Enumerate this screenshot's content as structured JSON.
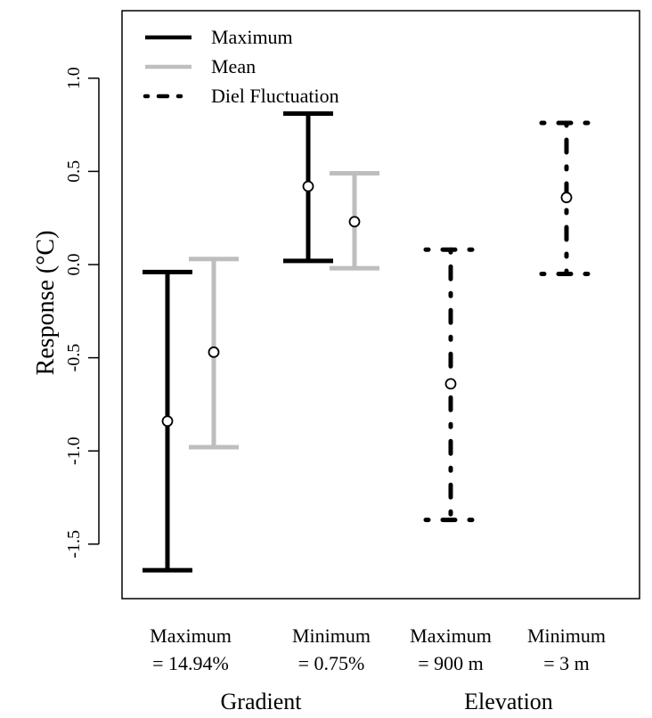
{
  "chart_data": {
    "type": "errorbar",
    "ylabel": "Response (°C)",
    "ylim": [
      -1.8,
      1.35
    ],
    "yticks": [
      -1.5,
      -1.0,
      -0.5,
      0.0,
      0.5,
      1.0
    ],
    "ytick_labels": [
      "-1.5",
      "-1.0",
      "-0.5",
      "0.0",
      "0.5",
      "1.0"
    ],
    "legend": {
      "position": "top-left",
      "entries": [
        {
          "name": "Maximum",
          "color": "#000000",
          "style": "solid"
        },
        {
          "name": "Mean",
          "color": "#bebebe",
          "style": "solid"
        },
        {
          "name": "Diel Fluctuation",
          "color": "#000000",
          "style": "dotdash"
        }
      ]
    },
    "groups": [
      {
        "name": "Gradient",
        "categories": [
          0,
          1
        ]
      },
      {
        "name": "Elevation",
        "categories": [
          2,
          3
        ]
      }
    ],
    "categories": [
      {
        "line1": "Maximum",
        "line2": "= 14.94%"
      },
      {
        "line1": "Minimum",
        "line2": "= 0.75%"
      },
      {
        "line1": "Maximum",
        "line2": "= 900 m"
      },
      {
        "line1": "Minimum",
        "line2": "= 3 m"
      }
    ],
    "series": [
      {
        "name": "Maximum",
        "category": 0,
        "mean": -0.84,
        "lower": -1.64,
        "upper": -0.04,
        "color": "#000000",
        "style": "solid",
        "offset": -0.5
      },
      {
        "name": "Mean",
        "category": 0,
        "mean": -0.47,
        "lower": -0.98,
        "upper": 0.03,
        "color": "#bebebe",
        "style": "solid",
        "offset": 0.5
      },
      {
        "name": "Maximum",
        "category": 1,
        "mean": 0.42,
        "lower": 0.02,
        "upper": 0.81,
        "color": "#000000",
        "style": "solid",
        "offset": -0.5
      },
      {
        "name": "Mean",
        "category": 1,
        "mean": 0.23,
        "lower": -0.02,
        "upper": 0.49,
        "color": "#bebebe",
        "style": "solid",
        "offset": 0.5
      },
      {
        "name": "Diel Fluctuation",
        "category": 2,
        "mean": -0.64,
        "lower": -1.37,
        "upper": 0.08,
        "color": "#000000",
        "style": "dotdash",
        "offset": 0
      },
      {
        "name": "Diel Fluctuation",
        "category": 3,
        "mean": 0.36,
        "lower": -0.05,
        "upper": 0.76,
        "color": "#000000",
        "style": "dotdash",
        "offset": 0
      }
    ]
  }
}
